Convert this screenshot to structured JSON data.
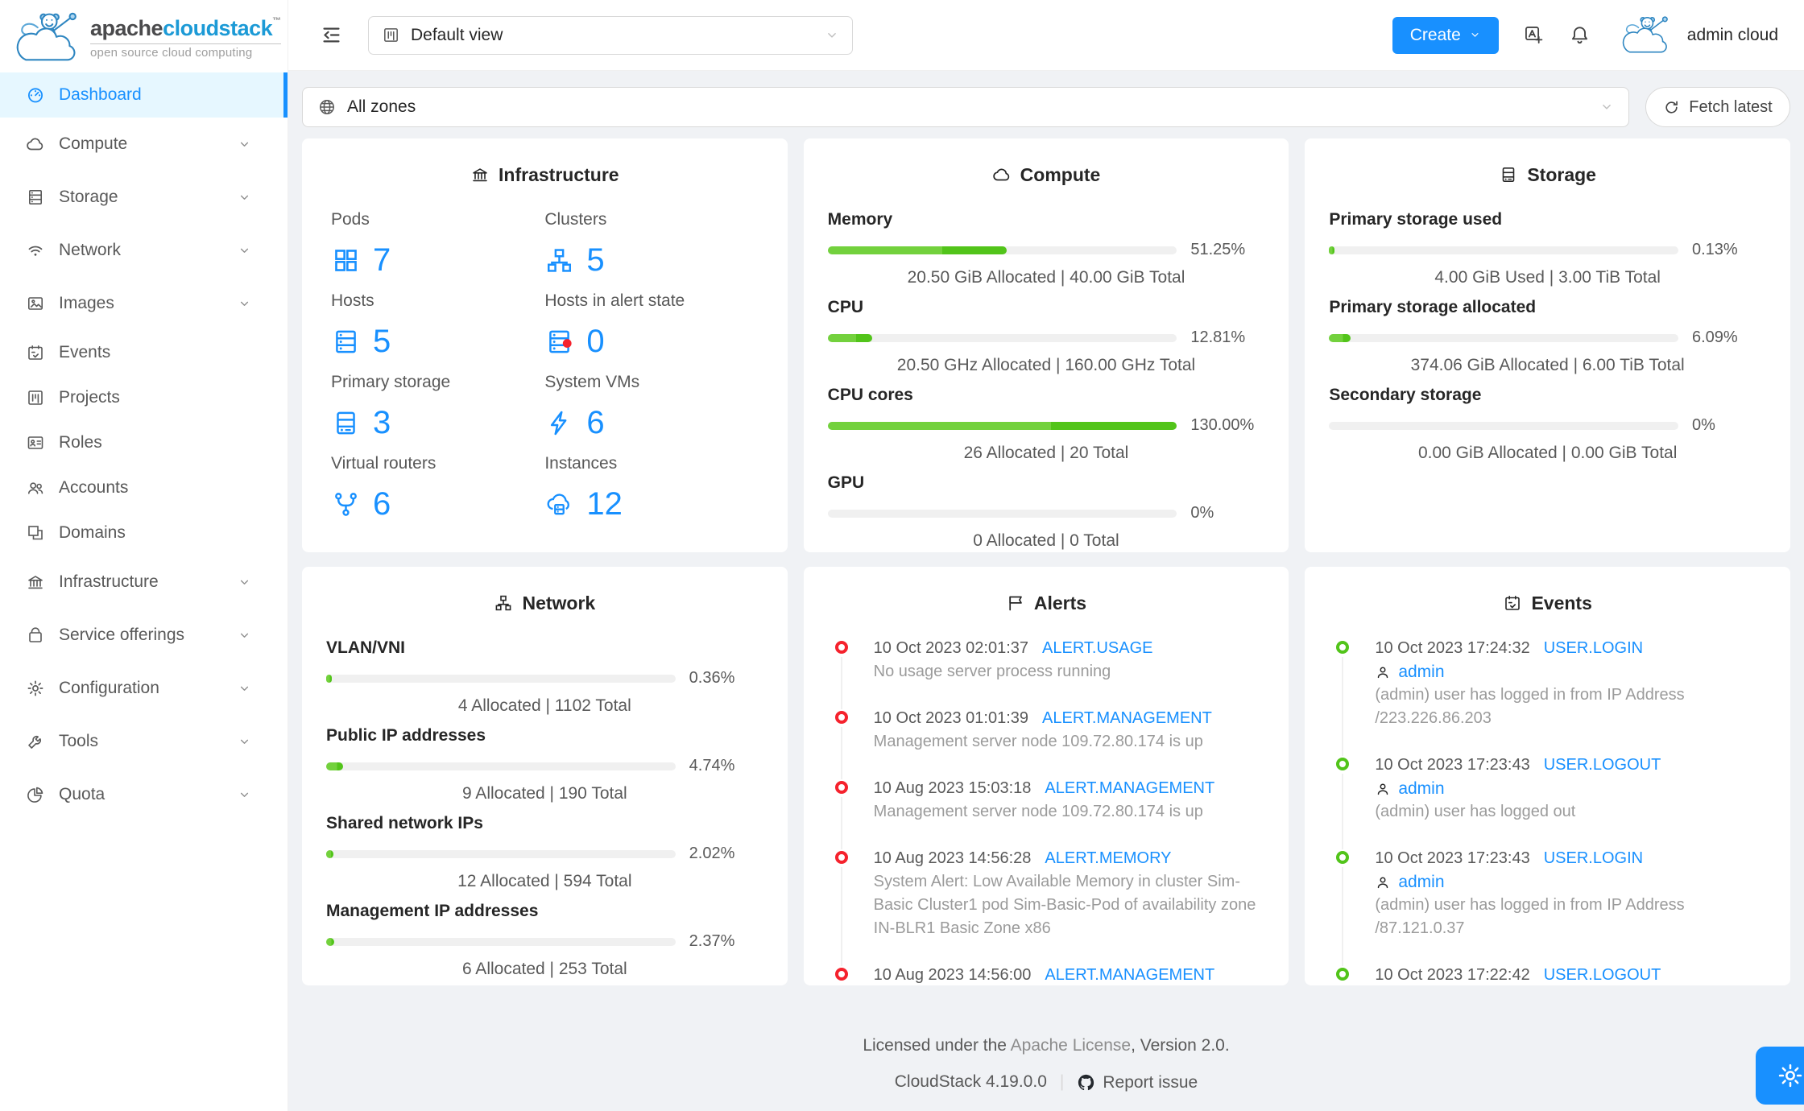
{
  "brand": {
    "primary": "apache",
    "secondary": "cloudstack",
    "trademark": "™",
    "tagline": "open source cloud computing"
  },
  "header": {
    "view_label": "Default view",
    "create_label": "Create",
    "user_name": "admin cloud"
  },
  "zone_bar": {
    "selected": "All zones",
    "fetch_label": "Fetch latest"
  },
  "sidebar": {
    "items": [
      {
        "label": "Dashboard",
        "icon": "dashboard-icon",
        "active": true
      },
      {
        "label": "Compute",
        "icon": "cloud-icon",
        "expandable": true
      },
      {
        "label": "Storage",
        "icon": "database-icon",
        "expandable": true
      },
      {
        "label": "Network",
        "icon": "wifi-icon",
        "expandable": true
      },
      {
        "label": "Images",
        "icon": "picture-icon",
        "expandable": true
      },
      {
        "label": "Events",
        "icon": "calendar-icon"
      },
      {
        "label": "Projects",
        "icon": "project-icon"
      },
      {
        "label": "Roles",
        "icon": "idcard-icon"
      },
      {
        "label": "Accounts",
        "icon": "team-icon"
      },
      {
        "label": "Domains",
        "icon": "block-icon"
      },
      {
        "label": "Infrastructure",
        "icon": "bank-icon",
        "expandable": true
      },
      {
        "label": "Service offerings",
        "icon": "shopping-bag-icon",
        "expandable": true
      },
      {
        "label": "Configuration",
        "icon": "gear-icon",
        "expandable": true
      },
      {
        "label": "Tools",
        "icon": "wrench-icon",
        "expandable": true
      },
      {
        "label": "Quota",
        "icon": "pie-chart-icon",
        "expandable": true
      }
    ]
  },
  "cards": {
    "infrastructure": {
      "title": "Infrastructure",
      "icon": "bank-icon",
      "stats": [
        {
          "label": "Pods",
          "value": "7",
          "icon": "appstore-icon"
        },
        {
          "label": "Clusters",
          "value": "5",
          "icon": "cluster-icon"
        },
        {
          "label": "Hosts",
          "value": "5",
          "icon": "database-icon"
        },
        {
          "label": "Hosts in alert state",
          "value": "0",
          "icon": "database-alert-icon"
        },
        {
          "label": "Primary storage",
          "value": "3",
          "icon": "hdd-icon"
        },
        {
          "label": "System VMs",
          "value": "6",
          "icon": "bolt-icon"
        },
        {
          "label": "Virtual routers",
          "value": "6",
          "icon": "fork-icon"
        },
        {
          "label": "Instances",
          "value": "12",
          "icon": "cloud-server-icon"
        }
      ]
    },
    "compute": {
      "title": "Compute",
      "icon": "cloud-icon",
      "meters": [
        {
          "label": "Memory",
          "percent": 51.25,
          "percent_label": "51.25%",
          "caption": "20.50 GiB Allocated | 40.00 GiB Total"
        },
        {
          "label": "CPU",
          "percent": 12.81,
          "percent_label": "12.81%",
          "caption": "20.50 GHz Allocated | 160.00 GHz Total"
        },
        {
          "label": "CPU cores",
          "percent": 130,
          "percent_label": "130.00%",
          "caption": "26 Allocated | 20 Total"
        },
        {
          "label": "GPU",
          "percent": 0,
          "percent_label": "0%",
          "caption": "0 Allocated | 0 Total"
        }
      ]
    },
    "storage": {
      "title": "Storage",
      "icon": "hdd-icon",
      "meters": [
        {
          "label": "Primary storage used",
          "percent": 0.13,
          "percent_label": "0.13%",
          "caption": "4.00 GiB Used | 3.00 TiB Total"
        },
        {
          "label": "Primary storage allocated",
          "percent": 6.09,
          "percent_label": "6.09%",
          "caption": "374.06 GiB Allocated | 6.00 TiB Total"
        },
        {
          "label": "Secondary storage",
          "percent": 0,
          "percent_label": "0%",
          "caption": "0.00 GiB Allocated | 0.00 GiB Total"
        }
      ]
    },
    "network": {
      "title": "Network",
      "icon": "cluster-icon",
      "meters": [
        {
          "label": "VLAN/VNI",
          "percent": 0.36,
          "percent_label": "0.36%",
          "caption": "4 Allocated | 1102 Total"
        },
        {
          "label": "Public IP addresses",
          "percent": 4.74,
          "percent_label": "4.74%",
          "caption": "9 Allocated | 190 Total"
        },
        {
          "label": "Shared network IPs",
          "percent": 2.02,
          "percent_label": "2.02%",
          "caption": "12 Allocated | 594 Total"
        },
        {
          "label": "Management IP addresses",
          "percent": 2.37,
          "percent_label": "2.37%",
          "caption": "6 Allocated | 253 Total"
        }
      ]
    },
    "alerts": {
      "title": "Alerts",
      "icon": "flag-icon",
      "dot_color": "#f5222d",
      "items": [
        {
          "timestamp": "10 Oct 2023 02:01:37",
          "type": "ALERT.USAGE",
          "description": "No usage server process running"
        },
        {
          "timestamp": "10 Oct 2023 01:01:39",
          "type": "ALERT.MANAGEMENT",
          "description": "Management server node 109.72.80.174 is up"
        },
        {
          "timestamp": "10 Aug 2023 15:03:18",
          "type": "ALERT.MANAGEMENT",
          "description": "Management server node 109.72.80.174 is up"
        },
        {
          "timestamp": "10 Aug 2023 14:56:28",
          "type": "ALERT.MEMORY",
          "description": "System Alert: Low Available Memory in cluster Sim-Basic Cluster1 pod Sim-Basic-Pod of availability zone IN-BLR1 Basic Zone x86"
        },
        {
          "timestamp": "10 Aug 2023 14:56:00",
          "type": "ALERT.MANAGEMENT"
        }
      ]
    },
    "events": {
      "title": "Events",
      "icon": "calendar-icon",
      "dot_color": "#52c41a",
      "items": [
        {
          "timestamp": "10 Oct 2023 17:24:32",
          "type": "USER.LOGIN",
          "user": "admin",
          "description": "(admin) user has logged in from IP Address /223.226.86.203"
        },
        {
          "timestamp": "10 Oct 2023 17:23:43",
          "type": "USER.LOGOUT",
          "user": "admin",
          "description": "(admin) user has logged out"
        },
        {
          "timestamp": "10 Oct 2023 17:23:43",
          "type": "USER.LOGIN",
          "user": "admin",
          "description": "(admin) user has logged in from IP Address /87.121.0.37"
        },
        {
          "timestamp": "10 Oct 2023 17:22:42",
          "type": "USER.LOGOUT"
        }
      ]
    }
  },
  "footer": {
    "license_prefix": "Licensed under the ",
    "license_link": "Apache License",
    "license_suffix": ", Version 2.0.",
    "version": "CloudStack 4.19.0.0",
    "separator": "|",
    "report_issue": "Report issue"
  },
  "colors": {
    "primary": "#1890ff",
    "progress_green": "#52c41a",
    "progress_green_light": "#73d13d",
    "alert_red": "#f5222d",
    "event_green": "#52c41a",
    "background": "#f0f2f5"
  }
}
